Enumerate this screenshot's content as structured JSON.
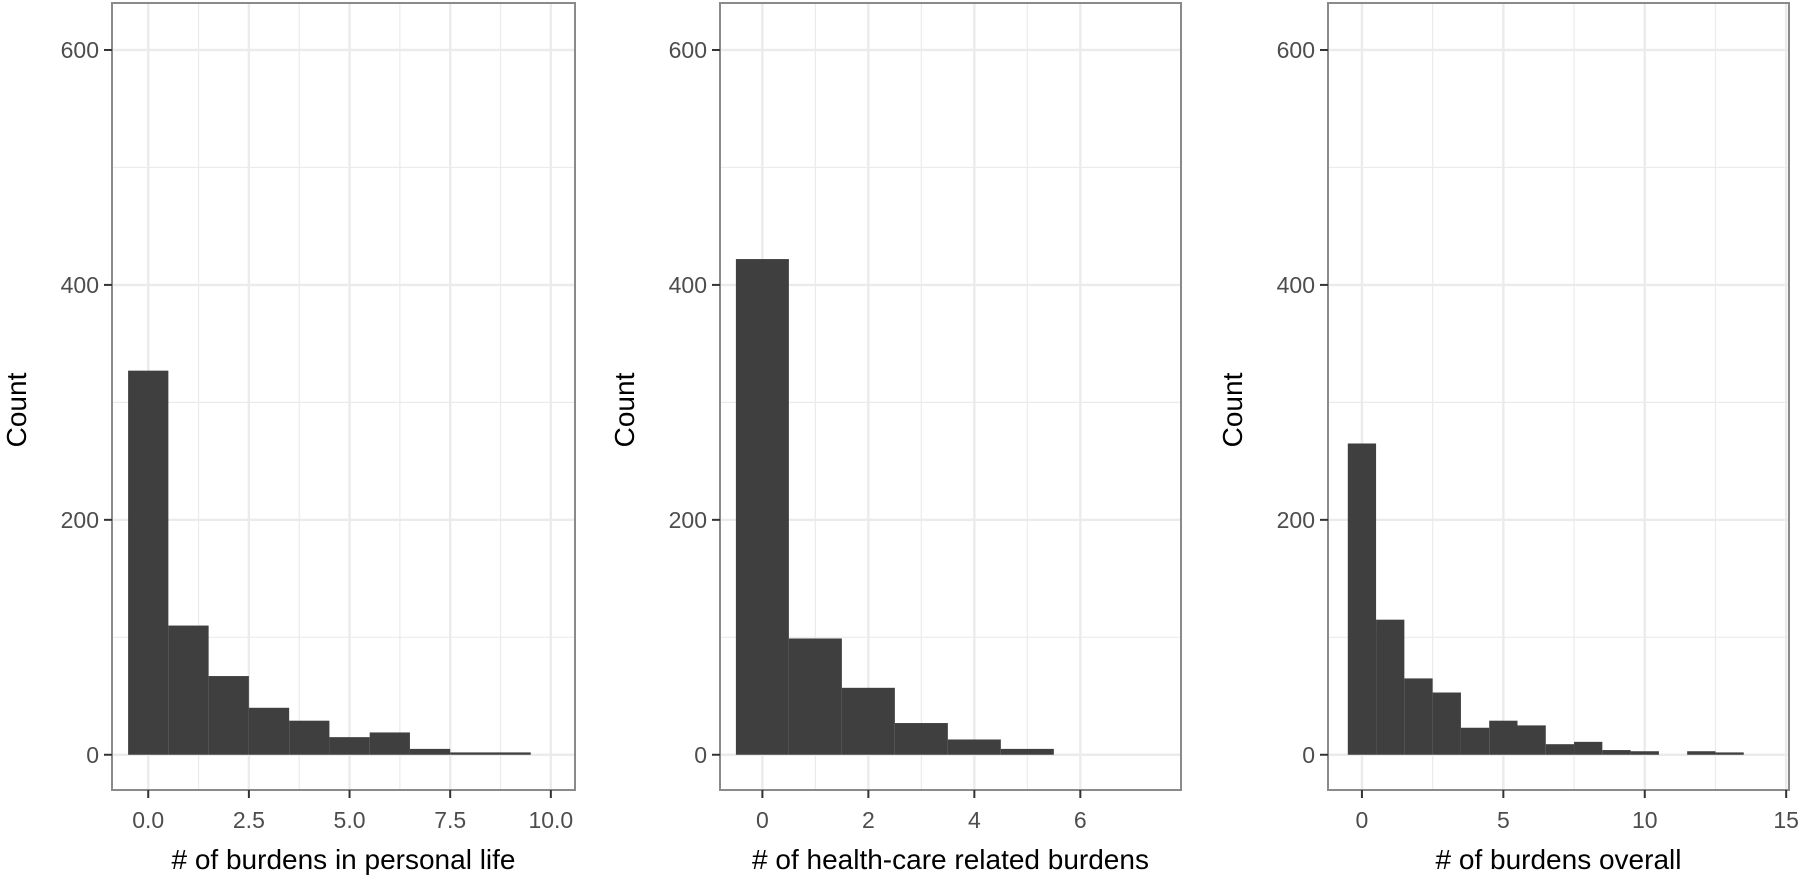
{
  "colors": {
    "bar": "#3f3f3f",
    "panel_border": "#8a8a8a",
    "grid": "#ebebeb",
    "background": "#ffffff"
  },
  "chart_data": [
    {
      "type": "bar",
      "title": "",
      "xlabel": "# of burdens in personal life",
      "ylabel": "Count",
      "xlim": [
        -0.9,
        10.6
      ],
      "ylim": [
        -30,
        640
      ],
      "xticks": [
        0,
        2.5,
        5,
        7.5,
        10
      ],
      "xtick_labels": [
        "0.0",
        "2.5",
        "5.0",
        "7.5",
        "10.0"
      ],
      "yticks": [
        0,
        200,
        400,
        600
      ],
      "ytick_labels": [
        "0",
        "200",
        "400",
        "600"
      ],
      "grid": true,
      "bin_width": 1,
      "x": [
        0,
        1,
        2,
        3,
        4,
        5,
        6,
        7,
        8,
        9
      ],
      "values": [
        327,
        110,
        67,
        40,
        29,
        15,
        19,
        5,
        2,
        2
      ]
    },
    {
      "type": "bar",
      "title": "",
      "xlabel": "# of health-care related burdens",
      "ylabel": "Count",
      "xlim": [
        -0.8,
        7.9
      ],
      "ylim": [
        -30,
        640
      ],
      "xticks": [
        0,
        2,
        4,
        6
      ],
      "xtick_labels": [
        "0",
        "2",
        "4",
        "6"
      ],
      "yticks": [
        0,
        200,
        400,
        600
      ],
      "ytick_labels": [
        "0",
        "200",
        "400",
        "600"
      ],
      "grid": true,
      "bin_width": 1,
      "x": [
        0,
        1,
        2,
        3,
        4,
        5
      ],
      "values": [
        422,
        99,
        57,
        27,
        13,
        5
      ]
    },
    {
      "type": "bar",
      "title": "",
      "xlabel": "# of burdens overall",
      "ylabel": "Count",
      "xlim": [
        -1.2,
        15.1
      ],
      "ylim": [
        -30,
        640
      ],
      "xticks": [
        0,
        5,
        10,
        15
      ],
      "xtick_labels": [
        "0",
        "5",
        "10",
        "15"
      ],
      "yticks": [
        0,
        200,
        400,
        600
      ],
      "ytick_labels": [
        "0",
        "200",
        "400",
        "600"
      ],
      "grid": true,
      "bin_width": 1,
      "x": [
        0,
        1,
        2,
        3,
        4,
        5,
        6,
        7,
        8,
        9,
        10,
        11,
        12,
        13
      ],
      "values": [
        265,
        115,
        65,
        53,
        23,
        29,
        25,
        9,
        11,
        4,
        3,
        0,
        3,
        2
      ]
    }
  ]
}
